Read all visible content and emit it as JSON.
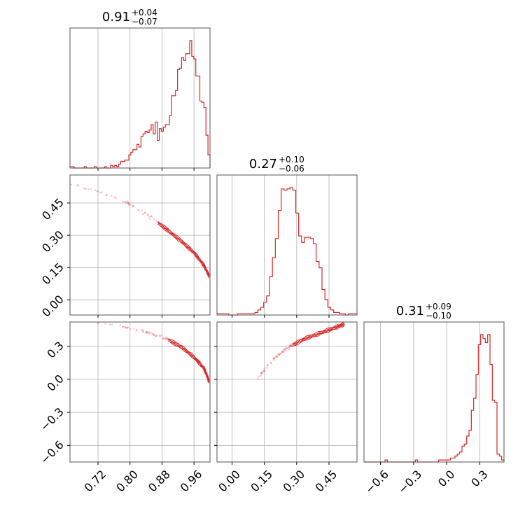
{
  "colors": {
    "accent": "#d62728",
    "grid": "#b0b0b0",
    "frame": "#555555"
  },
  "chart_data": {
    "type": "corner",
    "grid": true,
    "parameters": [
      {
        "median": "0.91",
        "plus": "+0.04",
        "minus": "−0.07",
        "range": [
          0.65,
          1.0
        ]
      },
      {
        "median": "0.27",
        "plus": "+0.10",
        "minus": "−0.06",
        "range": [
          -0.07,
          0.58
        ]
      },
      {
        "median": "0.31",
        "plus": "+0.09",
        "minus": "−0.10",
        "range": [
          -0.75,
          0.52
        ]
      }
    ],
    "panels": [
      {
        "id": "hist-0",
        "type": "histogram",
        "param": 0,
        "bins_lo": 0.65,
        "bins_hi": 1.0,
        "counts": [
          1,
          1,
          0,
          0,
          0,
          0,
          0,
          1,
          0,
          0,
          0,
          0,
          1,
          0,
          0,
          0,
          0,
          1,
          0,
          0,
          2,
          1,
          2,
          1,
          3,
          5,
          5,
          6,
          6,
          10,
          12,
          14,
          14,
          18,
          16,
          24,
          26,
          28,
          27,
          29,
          33,
          26,
          35,
          21,
          30,
          28,
          31,
          33,
          33,
          40,
          55,
          55,
          59,
          75,
          76,
          84,
          82,
          87,
          87,
          97,
          85,
          83,
          70,
          70,
          51,
          50,
          46,
          25,
          10
        ]
      },
      {
        "id": "hist-1",
        "type": "histogram",
        "param": 1,
        "bins_lo": -0.07,
        "bins_hi": 0.58,
        "counts": [
          1,
          1,
          1,
          1,
          0,
          0,
          0,
          1,
          1,
          1,
          1,
          1,
          1,
          2,
          4,
          6,
          10,
          15,
          30,
          45,
          60,
          82,
          99,
          98,
          99,
          100,
          98,
          80,
          62,
          57,
          61,
          61,
          60,
          56,
          42,
          37,
          20,
          12,
          6,
          4,
          2,
          2,
          1,
          1,
          0,
          1,
          1,
          1
        ]
      },
      {
        "id": "hist-2",
        "type": "histogram",
        "param": 2,
        "bins_lo": -0.75,
        "bins_hi": 0.52,
        "counts": [
          0,
          0,
          0,
          0,
          0,
          0,
          0,
          0,
          0,
          1,
          0,
          0,
          0,
          0,
          0,
          0,
          0,
          0,
          0,
          0,
          0,
          0,
          1,
          0,
          0,
          0,
          0,
          0,
          0,
          0,
          0,
          0,
          1,
          1,
          1,
          1,
          1,
          2,
          2,
          3,
          4,
          5,
          8,
          9,
          13,
          16,
          26,
          32,
          44,
          59,
          64,
          62,
          60,
          64,
          49,
          31,
          30,
          4,
          3,
          1
        ]
      },
      {
        "id": "scatter-1-0",
        "type": "scatter_contour",
        "x_param": 0,
        "y_param": 1,
        "trend": [
          [
            0.65,
            0.535
          ],
          [
            0.71,
            0.51
          ],
          [
            0.78,
            0.465
          ],
          [
            0.84,
            0.4
          ],
          [
            0.89,
            0.33
          ],
          [
            0.93,
            0.27
          ],
          [
            0.96,
            0.22
          ],
          [
            0.985,
            0.16
          ],
          [
            0.998,
            0.11
          ]
        ]
      },
      {
        "id": "scatter-2-0",
        "type": "scatter_contour",
        "x_param": 0,
        "y_param": 2,
        "trend": [
          [
            0.71,
            0.51
          ],
          [
            0.78,
            0.48
          ],
          [
            0.84,
            0.43
          ],
          [
            0.89,
            0.37
          ],
          [
            0.93,
            0.29
          ],
          [
            0.96,
            0.2
          ],
          [
            0.985,
            0.1
          ],
          [
            0.998,
            -0.02
          ]
        ]
      },
      {
        "id": "scatter-2-1",
        "type": "scatter_contour",
        "x_param": 1,
        "y_param": 2,
        "trend": [
          [
            0.11,
            -0.02
          ],
          [
            0.15,
            0.08
          ],
          [
            0.2,
            0.2
          ],
          [
            0.27,
            0.3
          ],
          [
            0.34,
            0.37
          ],
          [
            0.41,
            0.42
          ],
          [
            0.48,
            0.47
          ],
          [
            0.52,
            0.5
          ]
        ]
      }
    ],
    "ticks": {
      "x0": [
        "0.72",
        "0.80",
        "0.88",
        "0.96"
      ],
      "x1": [
        "0.00",
        "0.15",
        "0.30",
        "0.45"
      ],
      "x2": [
        "−0.6",
        "−0.3",
        "0.0",
        "0.3"
      ],
      "y1": [
        "0.00",
        "0.15",
        "0.30",
        "0.45"
      ],
      "y2": [
        "−0.6",
        "−0.3",
        "0.0",
        "0.3"
      ]
    }
  }
}
